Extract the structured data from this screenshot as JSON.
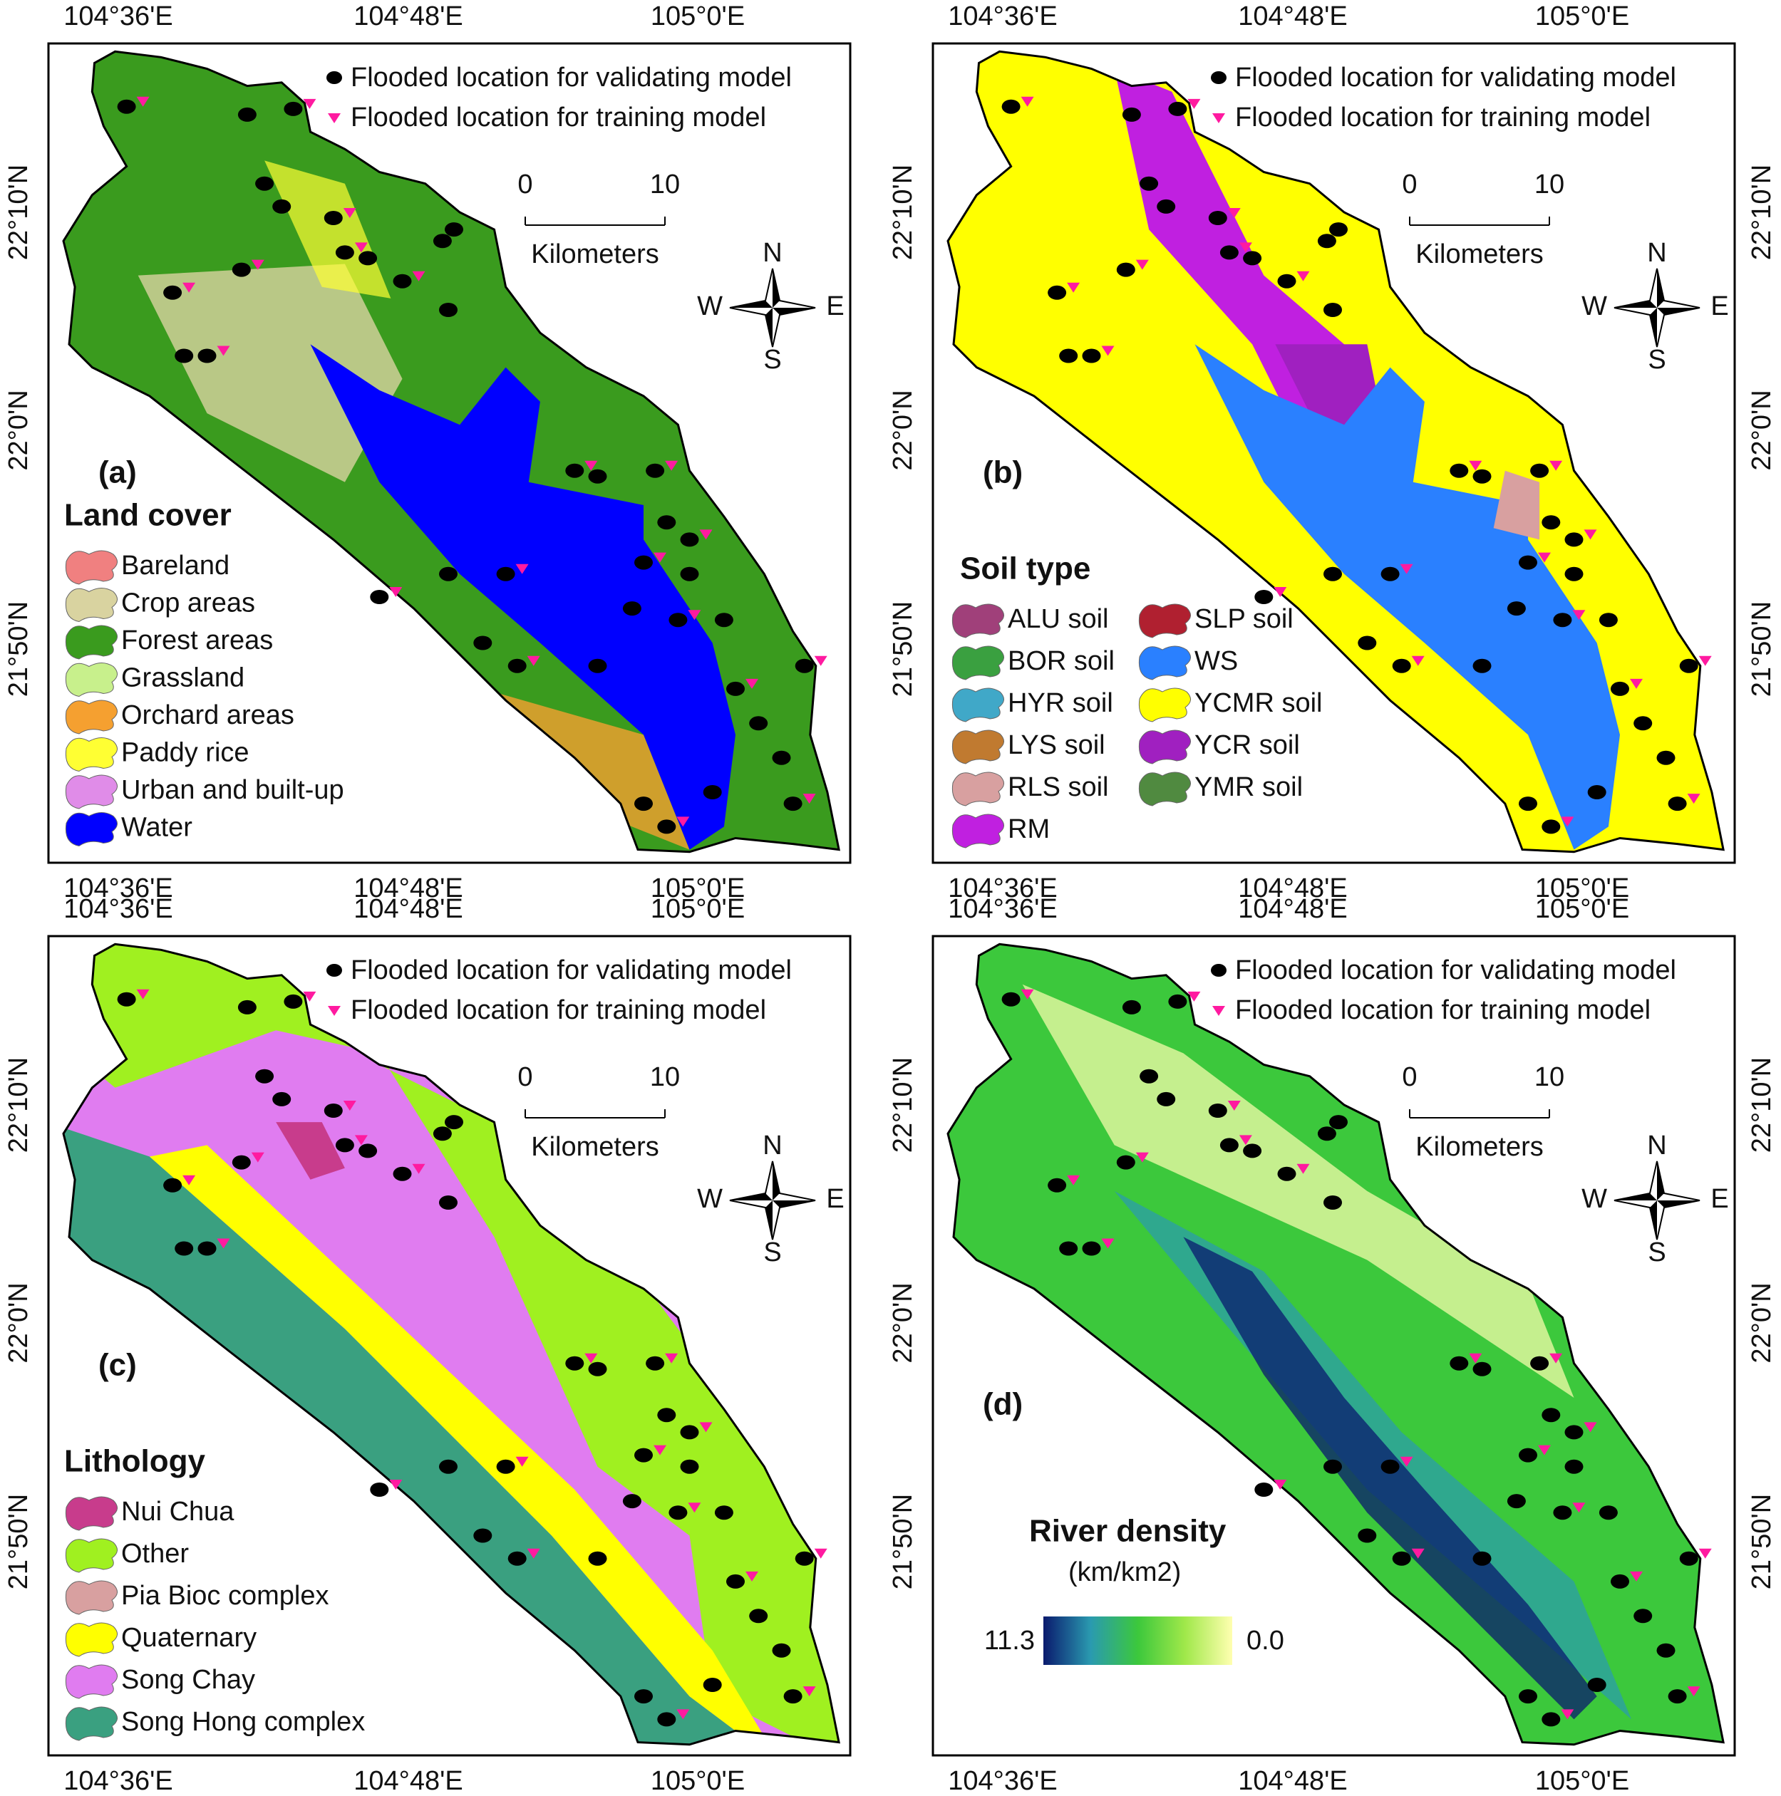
{
  "lon_labels": [
    "104°36'E",
    "104°48'E",
    "105°0'E"
  ],
  "lat_labels": [
    "22°10'N",
    "22°0'N",
    "21°50'N"
  ],
  "legend_points": {
    "validating": "Flooded location for validating model",
    "training": "Flooded location for training model"
  },
  "scale_bar": {
    "start": 0,
    "end": 10,
    "unit": "Kilometers"
  },
  "compass": {
    "n": "N",
    "s": "S",
    "w": "W",
    "e": "E"
  },
  "panels": [
    {
      "label": "(a)",
      "legend_title": "Land cover",
      "right_lat": false,
      "legend_columns": 1,
      "legend": [
        {
          "name": "Bareland",
          "color": "#f08080"
        },
        {
          "name": "Crop areas",
          "color": "#d9d3a0"
        },
        {
          "name": "Forest areas",
          "color": "#3a9b1e"
        },
        {
          "name": "Grassland",
          "color": "#c8f08c"
        },
        {
          "name": "Orchard areas",
          "color": "#f5a030"
        },
        {
          "name": "Paddy rice",
          "color": "#ffff33"
        },
        {
          "name": "Urban and built-up",
          "color": "#e08ce8"
        },
        {
          "name": "Water",
          "color": "#0000ff"
        }
      ]
    },
    {
      "label": "(b)",
      "legend_title": "Soil type",
      "right_lat": true,
      "legend_columns": 2,
      "legend": [
        {
          "name": "ALU soil",
          "color": "#a0407a"
        },
        {
          "name": "BOR soil",
          "color": "#3aa040"
        },
        {
          "name": "HYR soil",
          "color": "#40a8c8"
        },
        {
          "name": "LYS soil",
          "color": "#c07a30"
        },
        {
          "name": "RLS soil",
          "color": "#d8a0a0"
        },
        {
          "name": "RM",
          "color": "#c020e0"
        },
        {
          "name": "SLP soil",
          "color": "#b02030"
        },
        {
          "name": "WS",
          "color": "#2a80ff"
        },
        {
          "name": "YCMR soil",
          "color": "#ffff00"
        },
        {
          "name": "YCR soil",
          "color": "#a020c0"
        },
        {
          "name": "YMR soil",
          "color": "#508a40"
        }
      ]
    },
    {
      "label": "(c)",
      "legend_title": "Lithology",
      "right_lat": false,
      "legend_columns": 1,
      "legend": [
        {
          "name": "Nui Chua",
          "color": "#c83c8c"
        },
        {
          "name": "Other",
          "color": "#a0f020"
        },
        {
          "name": "Pia Bioc complex",
          "color": "#d8a0a0"
        },
        {
          "name": "Quaternary",
          "color": "#ffff00"
        },
        {
          "name": "Song Chay",
          "color": "#e07cf0"
        },
        {
          "name": "Song Hong complex",
          "color": "#3aa080"
        }
      ]
    },
    {
      "label": "(d)",
      "right_lat": true,
      "colorbar": {
        "title": "River density",
        "unit": "(km/km2)",
        "range": [
          11.3,
          {
            "value": 0,
            "label": "0.0"
          }
        ],
        "colors": [
          "#0a1a6e",
          "#2a9ab0",
          "#3cc83c",
          "#a0e84a",
          "#ffffb0"
        ]
      }
    }
  ]
}
